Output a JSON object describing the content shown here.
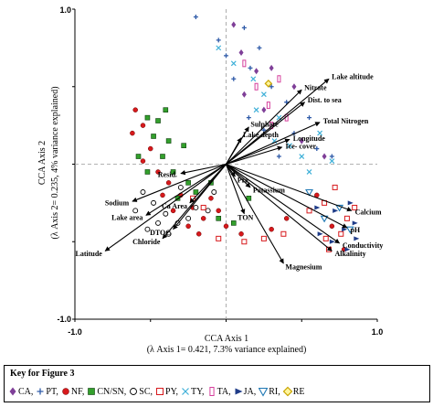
{
  "chart_data": {
    "type": "scatter",
    "subtype": "cca-biplot",
    "xlim": [
      -1.0,
      1.0
    ],
    "ylim": [
      -1.0,
      1.0
    ],
    "x_ticks": [
      "-1.0",
      "1.0"
    ],
    "y_ticks": [
      "1.0",
      "-1.0"
    ],
    "xlabel": "CCA Axis 1",
    "xlabel_sub": "(λ Axis 1= 0.421, 7.3% variance explained)",
    "ylabel": "CCA Axis 2",
    "ylabel_sub": "(λ Axis 2= 0.235, 4% variance explained)",
    "reference_lines": "dashed lines at x = 0 and y = 0",
    "vectors": [
      {
        "label": "Lake altitude",
        "x": 0.68,
        "y": 0.55
      },
      {
        "label": "Nitrate",
        "x": 0.5,
        "y": 0.48
      },
      {
        "label": "Dist. to sea",
        "x": 0.52,
        "y": 0.4
      },
      {
        "label": "Total Nitrogen",
        "x": 0.62,
        "y": 0.27
      },
      {
        "label": "Sulphate",
        "x": 0.15,
        "y": 0.24
      },
      {
        "label": "Lake depth",
        "x": 0.1,
        "y": 0.17
      },
      {
        "label": "Longitude",
        "x": 0.42,
        "y": 0.16
      },
      {
        "label": "Ice- cover",
        "x": 0.37,
        "y": 0.11
      },
      {
        "label": "Resid.",
        "x": -0.3,
        "y": -0.06
      },
      {
        "label": "Pre",
        "x": 0.06,
        "y": -0.08
      },
      {
        "label": "Potassium",
        "x": 0.16,
        "y": -0.15
      },
      {
        "label": "Sodium",
        "x": -0.62,
        "y": -0.24
      },
      {
        "label": "Ca Area",
        "x": -0.24,
        "y": -0.25
      },
      {
        "label": "TON",
        "x": 0.12,
        "y": -0.32
      },
      {
        "label": "Lake area",
        "x": -0.53,
        "y": -0.33
      },
      {
        "label": "DTOC",
        "x": -0.35,
        "y": -0.42
      },
      {
        "label": "Chloride",
        "x": -0.42,
        "y": -0.48
      },
      {
        "label": "Latitude",
        "x": -0.8,
        "y": -0.56
      },
      {
        "label": "Magnesium",
        "x": 0.38,
        "y": -0.64
      },
      {
        "label": "Calcium",
        "x": 0.83,
        "y": -0.3
      },
      {
        "label": "pH",
        "x": 0.8,
        "y": -0.41
      },
      {
        "label": "Conductivity",
        "x": 0.75,
        "y": -0.51
      },
      {
        "label": "Alkalinity",
        "x": 0.7,
        "y": -0.56
      }
    ],
    "series": [
      {
        "name": "CA",
        "marker": "diamond",
        "color": "#7f3f98",
        "points": [
          [
            0.05,
            0.9
          ],
          [
            0.1,
            0.72
          ],
          [
            0.2,
            0.6
          ],
          [
            0.12,
            0.45
          ],
          [
            0.3,
            0.62
          ],
          [
            0.25,
            0.35
          ],
          [
            0.45,
            0.5
          ],
          [
            0.5,
            0.15
          ],
          [
            0.65,
            0.05
          ]
        ]
      },
      {
        "name": "PT",
        "marker": "plus",
        "color": "#2e5aa8",
        "points": [
          [
            -0.2,
            0.95
          ],
          [
            -0.05,
            0.8
          ],
          [
            0.0,
            0.7
          ],
          [
            0.12,
            0.88
          ],
          [
            0.05,
            0.55
          ],
          [
            0.16,
            0.62
          ],
          [
            0.22,
            0.75
          ],
          [
            0.3,
            0.5
          ],
          [
            0.4,
            0.4
          ],
          [
            0.25,
            0.22
          ],
          [
            0.45,
            0.2
          ],
          [
            0.55,
            0.3
          ],
          [
            0.6,
            0.1
          ],
          [
            0.7,
            0.05
          ],
          [
            0.35,
            0.05
          ],
          [
            0.15,
            0.3
          ]
        ]
      },
      {
        "name": "NF",
        "marker": "circle",
        "color": "#d7191c",
        "points": [
          [
            -0.6,
            0.35
          ],
          [
            -0.55,
            0.25
          ],
          [
            -0.62,
            0.2
          ],
          [
            -0.5,
            0.1
          ],
          [
            -0.55,
            0.02
          ],
          [
            -0.45,
            -0.05
          ],
          [
            -0.38,
            -0.12
          ],
          [
            -0.3,
            -0.2
          ],
          [
            -0.22,
            -0.28
          ],
          [
            -0.15,
            -0.35
          ],
          [
            -0.1,
            -0.22
          ],
          [
            -0.05,
            -0.3
          ],
          [
            -0.25,
            -0.4
          ],
          [
            -0.35,
            -0.3
          ],
          [
            -0.42,
            -0.2
          ],
          [
            -0.18,
            -0.45
          ],
          [
            0.0,
            -0.4
          ],
          [
            0.1,
            -0.45
          ],
          [
            0.3,
            -0.42
          ],
          [
            0.4,
            -0.35
          ],
          [
            0.6,
            -0.2
          ],
          [
            0.7,
            -0.4
          ],
          [
            0.78,
            -0.55
          ]
        ]
      },
      {
        "name": "CN/SN",
        "marker": "square",
        "color": "#33a02c",
        "points": [
          [
            -0.52,
            0.3
          ],
          [
            -0.45,
            0.28
          ],
          [
            -0.4,
            0.35
          ],
          [
            -0.48,
            0.18
          ],
          [
            -0.38,
            0.15
          ],
          [
            -0.42,
            0.05
          ],
          [
            -0.58,
            0.05
          ],
          [
            -0.52,
            -0.05
          ],
          [
            -0.35,
            -0.05
          ],
          [
            -0.28,
            0.12
          ],
          [
            -0.25,
            -0.12
          ],
          [
            -0.32,
            -0.22
          ],
          [
            -0.2,
            -0.18
          ],
          [
            -0.1,
            -0.12
          ],
          [
            -0.05,
            -0.35
          ],
          [
            0.05,
            -0.38
          ],
          [
            0.15,
            -0.22
          ]
        ]
      },
      {
        "name": "SC",
        "marker": "circle-open",
        "color": "#000000",
        "points": [
          [
            -0.55,
            -0.18
          ],
          [
            -0.48,
            -0.25
          ],
          [
            -0.6,
            -0.3
          ],
          [
            -0.4,
            -0.32
          ],
          [
            -0.32,
            -0.38
          ],
          [
            -0.38,
            -0.45
          ],
          [
            -0.25,
            -0.35
          ],
          [
            -0.2,
            -0.28
          ],
          [
            -0.12,
            -0.3
          ],
          [
            -0.3,
            -0.15
          ],
          [
            -0.45,
            -0.38
          ],
          [
            -0.52,
            -0.42
          ],
          [
            -0.08,
            -0.18
          ]
        ]
      },
      {
        "name": "PY",
        "marker": "square-open",
        "color": "#d7191c",
        "points": [
          [
            -0.22,
            -0.22
          ],
          [
            -0.15,
            -0.28
          ],
          [
            -0.05,
            -0.48
          ],
          [
            0.12,
            -0.5
          ],
          [
            0.25,
            -0.48
          ],
          [
            0.38,
            -0.45
          ],
          [
            0.55,
            -0.3
          ],
          [
            0.65,
            -0.25
          ],
          [
            0.72,
            -0.15
          ],
          [
            0.8,
            -0.35
          ],
          [
            0.76,
            -0.45
          ],
          [
            0.66,
            -0.48
          ],
          [
            0.85,
            -0.28
          ],
          [
            0.68,
            -0.55
          ]
        ]
      },
      {
        "name": "TY",
        "marker": "cross",
        "color": "#3fb0d8",
        "points": [
          [
            -0.05,
            0.75
          ],
          [
            0.05,
            0.65
          ],
          [
            0.18,
            0.55
          ],
          [
            0.25,
            0.45
          ],
          [
            0.35,
            0.3
          ],
          [
            0.42,
            0.12
          ],
          [
            0.5,
            0.05
          ],
          [
            0.32,
            0.15
          ],
          [
            0.55,
            -0.05
          ],
          [
            0.7,
            0.02
          ],
          [
            0.62,
            0.2
          ],
          [
            0.2,
            0.35
          ]
        ]
      },
      {
        "name": "TA",
        "marker": "rect-open",
        "color": "#d53e9c",
        "points": [
          [
            0.12,
            0.65
          ],
          [
            0.2,
            0.5
          ],
          [
            0.28,
            0.38
          ],
          [
            0.35,
            0.55
          ],
          [
            0.3,
            0.25
          ],
          [
            0.4,
            0.3
          ]
        ]
      },
      {
        "name": "JA",
        "marker": "triangle-right",
        "color": "#1f3c88",
        "points": [
          [
            0.6,
            -0.28
          ],
          [
            0.72,
            -0.3
          ],
          [
            0.82,
            -0.25
          ],
          [
            0.85,
            -0.38
          ],
          [
            0.78,
            -0.42
          ],
          [
            0.7,
            -0.5
          ],
          [
            0.62,
            -0.45
          ],
          [
            0.86,
            -0.48
          ],
          [
            0.8,
            -0.55
          ]
        ]
      },
      {
        "name": "RI",
        "marker": "triangle-down-open",
        "color": "#1f78b4",
        "points": [
          [
            0.55,
            -0.18
          ],
          [
            0.65,
            -0.35
          ],
          [
            0.75,
            -0.28
          ],
          [
            0.82,
            -0.42
          ]
        ]
      },
      {
        "name": "RE",
        "marker": "diamond-open",
        "color": "#c9a500",
        "points": [
          [
            0.28,
            0.52
          ]
        ]
      }
    ]
  },
  "key": {
    "title": "Key for Figure 3",
    "items": [
      {
        "icon": "diamond-icon",
        "label": "CA,",
        "color": "#7f3f98"
      },
      {
        "icon": "plus-icon",
        "label": "PT,",
        "color": "#2e5aa8"
      },
      {
        "icon": "filled-circle-icon",
        "label": "NF,",
        "color": "#d7191c"
      },
      {
        "icon": "filled-square-icon",
        "label": "CN/SN,",
        "color": "#33a02c"
      },
      {
        "icon": "open-circle-icon",
        "label": "SC,",
        "color": "#000000"
      },
      {
        "icon": "open-square-icon",
        "label": "PY,",
        "color": "#d7191c"
      },
      {
        "icon": "cross-icon",
        "label": "TY,",
        "color": "#3fb0d8"
      },
      {
        "icon": "tall-rect-icon",
        "label": "TA,",
        "color": "#d53e9c"
      },
      {
        "icon": "right-triangle-icon",
        "label": "JA,",
        "color": "#1f3c88"
      },
      {
        "icon": "down-triangle-icon",
        "label": "RI,",
        "color": "#1f78b4"
      },
      {
        "icon": "open-diamond-icon",
        "label": "RE",
        "color": "#c9a500"
      }
    ]
  }
}
